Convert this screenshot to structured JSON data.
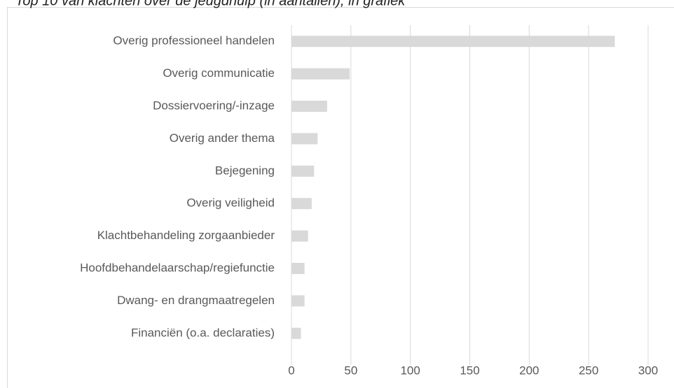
{
  "chart_data": {
    "type": "bar",
    "orientation": "horizontal",
    "title": "Top 10 van klachten over de jeugdhulp (in aantallen), in grafiek",
    "categories": [
      "Overig professioneel handelen",
      "Overig communicatie",
      "Dossiervoering/-inzage",
      "Overig ander thema",
      "Bejegening",
      "Overig veiligheid",
      "Klachtbehandeling zorgaanbieder",
      "Hoofdbehandelaarschap/regiefunctie",
      "Dwang- en drangmaatregelen",
      "Financiën (o.a. declaraties)"
    ],
    "values": [
      272,
      49,
      30,
      22,
      19,
      17,
      14,
      11,
      11,
      8
    ],
    "color": "#d9d9d9",
    "xlim": [
      0,
      300
    ],
    "xticks": [
      0,
      50,
      100,
      150,
      200,
      250,
      300
    ],
    "grid": true
  }
}
